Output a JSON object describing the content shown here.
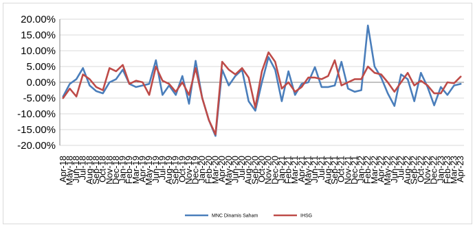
{
  "chart_data": {
    "type": "line",
    "title": "",
    "xlabel": "",
    "ylabel": "",
    "ylim": [
      -0.2,
      0.2
    ],
    "y_tick_values": [
      -0.2,
      -0.15,
      -0.1,
      -0.05,
      0.0,
      0.05,
      0.1,
      0.15,
      0.2
    ],
    "y_tick_labels": [
      "-20.00%",
      "-15.00%",
      "-10.00%",
      "-5.00%",
      "0.00%",
      "5.00%",
      "10.00%",
      "15.00%",
      "20.00%"
    ],
    "grid": "horizontal",
    "legend_position": "bottom",
    "categories": [
      "Apr-18",
      "May-18",
      "Jun-18",
      "Jul-18",
      "Aug-18",
      "Sep-18",
      "Oct-18",
      "Nov-18",
      "Dec-18",
      "Jan-19",
      "Feb-19",
      "Mar-19",
      "Apr-19",
      "May-19",
      "Jun-19",
      "Jul-19",
      "Aug-19",
      "Sep-19",
      "Oct-19",
      "Nov-19",
      "Dec-19",
      "Jan-20",
      "Feb-20",
      "Mar-20",
      "Apr-20",
      "May-20",
      "Jun-20",
      "Jul-20",
      "Aug-20",
      "Sep-20",
      "Oct-20",
      "Nov-20",
      "Dec-20",
      "Jan-21",
      "Feb-21",
      "Mar-21",
      "Apr-21",
      "May-21",
      "Jun-21",
      "Jul-21",
      "Aug-21",
      "Sep-21",
      "Oct-21",
      "Nov-21",
      "Dec-21",
      "Jan-22",
      "Feb-22",
      "Mar-22",
      "Apr-22",
      "May-22",
      "Jun-22",
      "Jul-22",
      "Aug-22",
      "Sep-22",
      "Oct-22",
      "Nov-22",
      "Dec-22",
      "Jan-23",
      "Feb-23",
      "Mar-23",
      "Apr-23"
    ],
    "series": [
      {
        "name": "MNC Dinamis Saham",
        "color": "#4a7ebb",
        "values": [
          -0.045,
          -0.005,
          0.01,
          0.045,
          -0.01,
          -0.028,
          -0.035,
          0.0,
          0.01,
          0.04,
          -0.005,
          -0.015,
          -0.01,
          -0.005,
          0.07,
          -0.04,
          -0.01,
          -0.04,
          0.02,
          -0.068,
          0.068,
          -0.05,
          -0.12,
          -0.17,
          0.04,
          -0.01,
          0.02,
          0.04,
          -0.06,
          -0.09,
          0.0,
          0.08,
          0.04,
          -0.06,
          0.035,
          -0.04,
          -0.005,
          0.0,
          0.048,
          -0.015,
          -0.015,
          -0.01,
          0.065,
          -0.02,
          -0.03,
          -0.025,
          0.18,
          0.05,
          0.015,
          -0.035,
          -0.075,
          0.025,
          0.01,
          -0.06,
          0.03,
          -0.015,
          -0.073,
          -0.015,
          -0.04,
          -0.01,
          -0.005
        ]
      },
      {
        "name": "IHSG",
        "color": "#be4b48",
        "values": [
          -0.05,
          -0.02,
          -0.045,
          0.025,
          0.01,
          -0.015,
          -0.025,
          0.045,
          0.035,
          0.055,
          -0.005,
          0.005,
          0.0,
          -0.04,
          0.05,
          0.005,
          -0.005,
          -0.03,
          0.0,
          -0.04,
          0.045,
          -0.05,
          -0.12,
          -0.165,
          0.065,
          0.04,
          0.025,
          0.045,
          0.015,
          -0.08,
          0.035,
          0.095,
          0.065,
          -0.02,
          0.0,
          -0.03,
          -0.015,
          0.015,
          0.015,
          0.01,
          0.02,
          0.07,
          -0.01,
          0.0,
          0.01,
          0.01,
          0.05,
          0.03,
          0.025,
          0.0,
          -0.03,
          0.0,
          0.03,
          -0.01,
          0.005,
          -0.01,
          -0.035,
          -0.035,
          0.0,
          -0.003,
          0.018
        ]
      }
    ]
  }
}
